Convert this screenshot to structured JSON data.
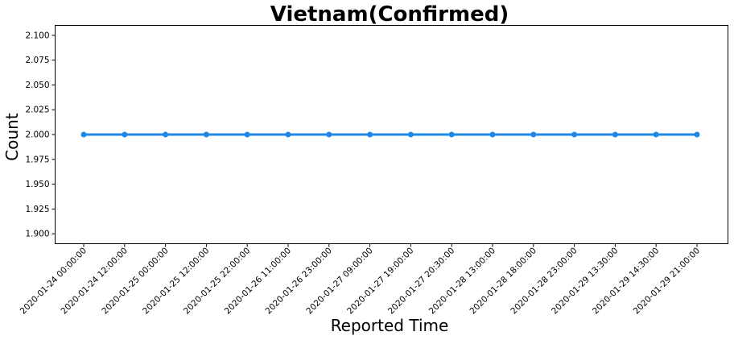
{
  "chart_data": {
    "type": "line",
    "title": "Vietnam(Confirmed)",
    "xlabel": "Reported Time",
    "ylabel": "Count",
    "x": [
      "2020-01-24 00:00:00",
      "2020-01-24 12:00:00",
      "2020-01-25 00:00:00",
      "2020-01-25 12:00:00",
      "2020-01-25 22:00:00",
      "2020-01-26 11:00:00",
      "2020-01-26 23:00:00",
      "2020-01-27 09:00:00",
      "2020-01-27 19:00:00",
      "2020-01-27 20:30:00",
      "2020-01-28 13:00:00",
      "2020-01-28 18:00:00",
      "2020-01-28 23:00:00",
      "2020-01-29 13:30:00",
      "2020-01-29 14:30:00",
      "2020-01-29 21:00:00"
    ],
    "series": [
      {
        "values": [
          2,
          2,
          2,
          2,
          2,
          2,
          2,
          2,
          2,
          2,
          2,
          2,
          2,
          2,
          2,
          2
        ]
      }
    ],
    "ylim": [
      1.89,
      2.11
    ],
    "yticks": [
      "1.900",
      "1.925",
      "1.950",
      "1.975",
      "2.000",
      "2.025",
      "2.050",
      "2.075",
      "2.100"
    ],
    "grid": false,
    "marker": "circle",
    "color": "#1f88e5"
  }
}
